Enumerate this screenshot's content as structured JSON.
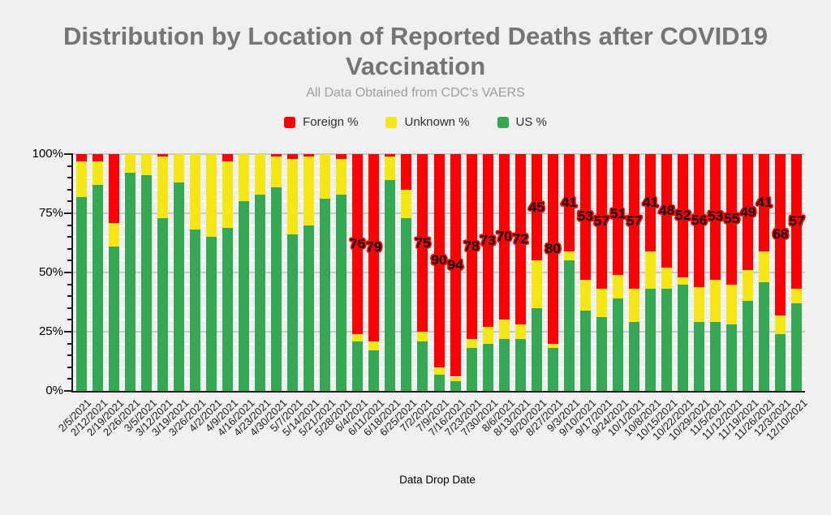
{
  "page": {
    "background": "#f0f0f1"
  },
  "header": {
    "title_line1": "Distribution by Location of Reported Deaths after COVID19",
    "title_line2": "Vaccination",
    "subtitle": "All Data Obtained from CDC's VAERS"
  },
  "legend": [
    {
      "label": "Foreign %",
      "color": "#ff0000"
    },
    {
      "label": "Unknown %",
      "color": "#f4e713"
    },
    {
      "label": "US %",
      "color": "#34a853"
    }
  ],
  "axis": {
    "x_title": "Data Drop Date"
  },
  "chart_data": {
    "type": "bar",
    "stacked": true,
    "title": "Distribution by Location of Reported Deaths after COVID19 Vaccination",
    "subtitle": "All Data Obtained from CDC's VAERS",
    "xlabel": "Data Drop Date",
    "ylabel": "",
    "ylim": [
      0,
      100
    ],
    "grid": true,
    "legend_position": "top",
    "ytick_values": [
      0,
      25,
      50,
      75,
      100
    ],
    "ytick_labels": [
      "0%",
      "25%",
      "50%",
      "75%",
      "100%"
    ],
    "ytick_minor_step": 5,
    "categories": [
      "2/5/2021",
      "2/12/2021",
      "2/19/2021",
      "2/26/2021",
      "3/5/2021",
      "3/12/2021",
      "3/19/2021",
      "3/26/2021",
      "4/2/2021",
      "4/9/2021",
      "4/16/2021",
      "4/23/2021",
      "4/30/2021",
      "5/7/2021",
      "5/14/2021",
      "5/21/2021",
      "5/28/2021",
      "6/4/2021",
      "6/11/2021",
      "6/18/2021",
      "6/25/2021",
      "7/2/2021",
      "7/9/2021",
      "7/16/2021",
      "7/23/2021",
      "7/30/2021",
      "8/6/2021",
      "8/13/2021",
      "8/20/2021",
      "8/27/2021",
      "9/3/2021",
      "9/10/2021",
      "9/17/2021",
      "9/24/2021",
      "10/1/2021",
      "10/8/2021",
      "10/15/2021",
      "10/22/2021",
      "10/29/2021",
      "11/5/2021",
      "11/12/2021",
      "11/19/2021",
      "11/26/2021",
      "12/3/2021",
      "12/10/2021"
    ],
    "series": [
      {
        "name": "Foreign %",
        "color": "#ff0000",
        "values": [
          3,
          3,
          29,
          0,
          0,
          1,
          0,
          0,
          0,
          3,
          0,
          0,
          1,
          2,
          1,
          0,
          2,
          76,
          79,
          1,
          15,
          75,
          90,
          94,
          78,
          73,
          70,
          72,
          45,
          80,
          41,
          53,
          57,
          51,
          57,
          41,
          48,
          52,
          56,
          53,
          55,
          49,
          41,
          68,
          57
        ],
        "labels": [
          null,
          null,
          null,
          null,
          null,
          null,
          null,
          null,
          null,
          null,
          null,
          null,
          null,
          null,
          null,
          null,
          null,
          "76",
          "79",
          null,
          null,
          "75",
          "90",
          "94",
          "78",
          "73",
          "70",
          "72",
          "45",
          "80",
          "41",
          "53",
          "57",
          "51",
          "57",
          "41",
          "48",
          "52",
          "56",
          "53",
          "55",
          "49",
          "41",
          "68",
          "57"
        ]
      },
      {
        "name": "Unknown %",
        "color": "#f4e713",
        "values": [
          15,
          10,
          10,
          8,
          9,
          26,
          12,
          32,
          35,
          28,
          20,
          17,
          13,
          32,
          29,
          19,
          15,
          3,
          4,
          10,
          12,
          4,
          3,
          2,
          4,
          7,
          8,
          6,
          20,
          2,
          4,
          13,
          12,
          10,
          14,
          16,
          9,
          3,
          15,
          18,
          17,
          13,
          13,
          8,
          6
        ]
      },
      {
        "name": "US %",
        "color": "#34a853",
        "values": [
          82,
          87,
          61,
          92,
          91,
          73,
          88,
          68,
          65,
          69,
          80,
          83,
          86,
          66,
          70,
          81,
          83,
          21,
          17,
          89,
          73,
          21,
          7,
          4,
          18,
          20,
          22,
          22,
          35,
          18,
          55,
          34,
          31,
          39,
          29,
          43,
          43,
          45,
          29,
          29,
          28,
          38,
          46,
          24,
          37
        ]
      }
    ]
  }
}
